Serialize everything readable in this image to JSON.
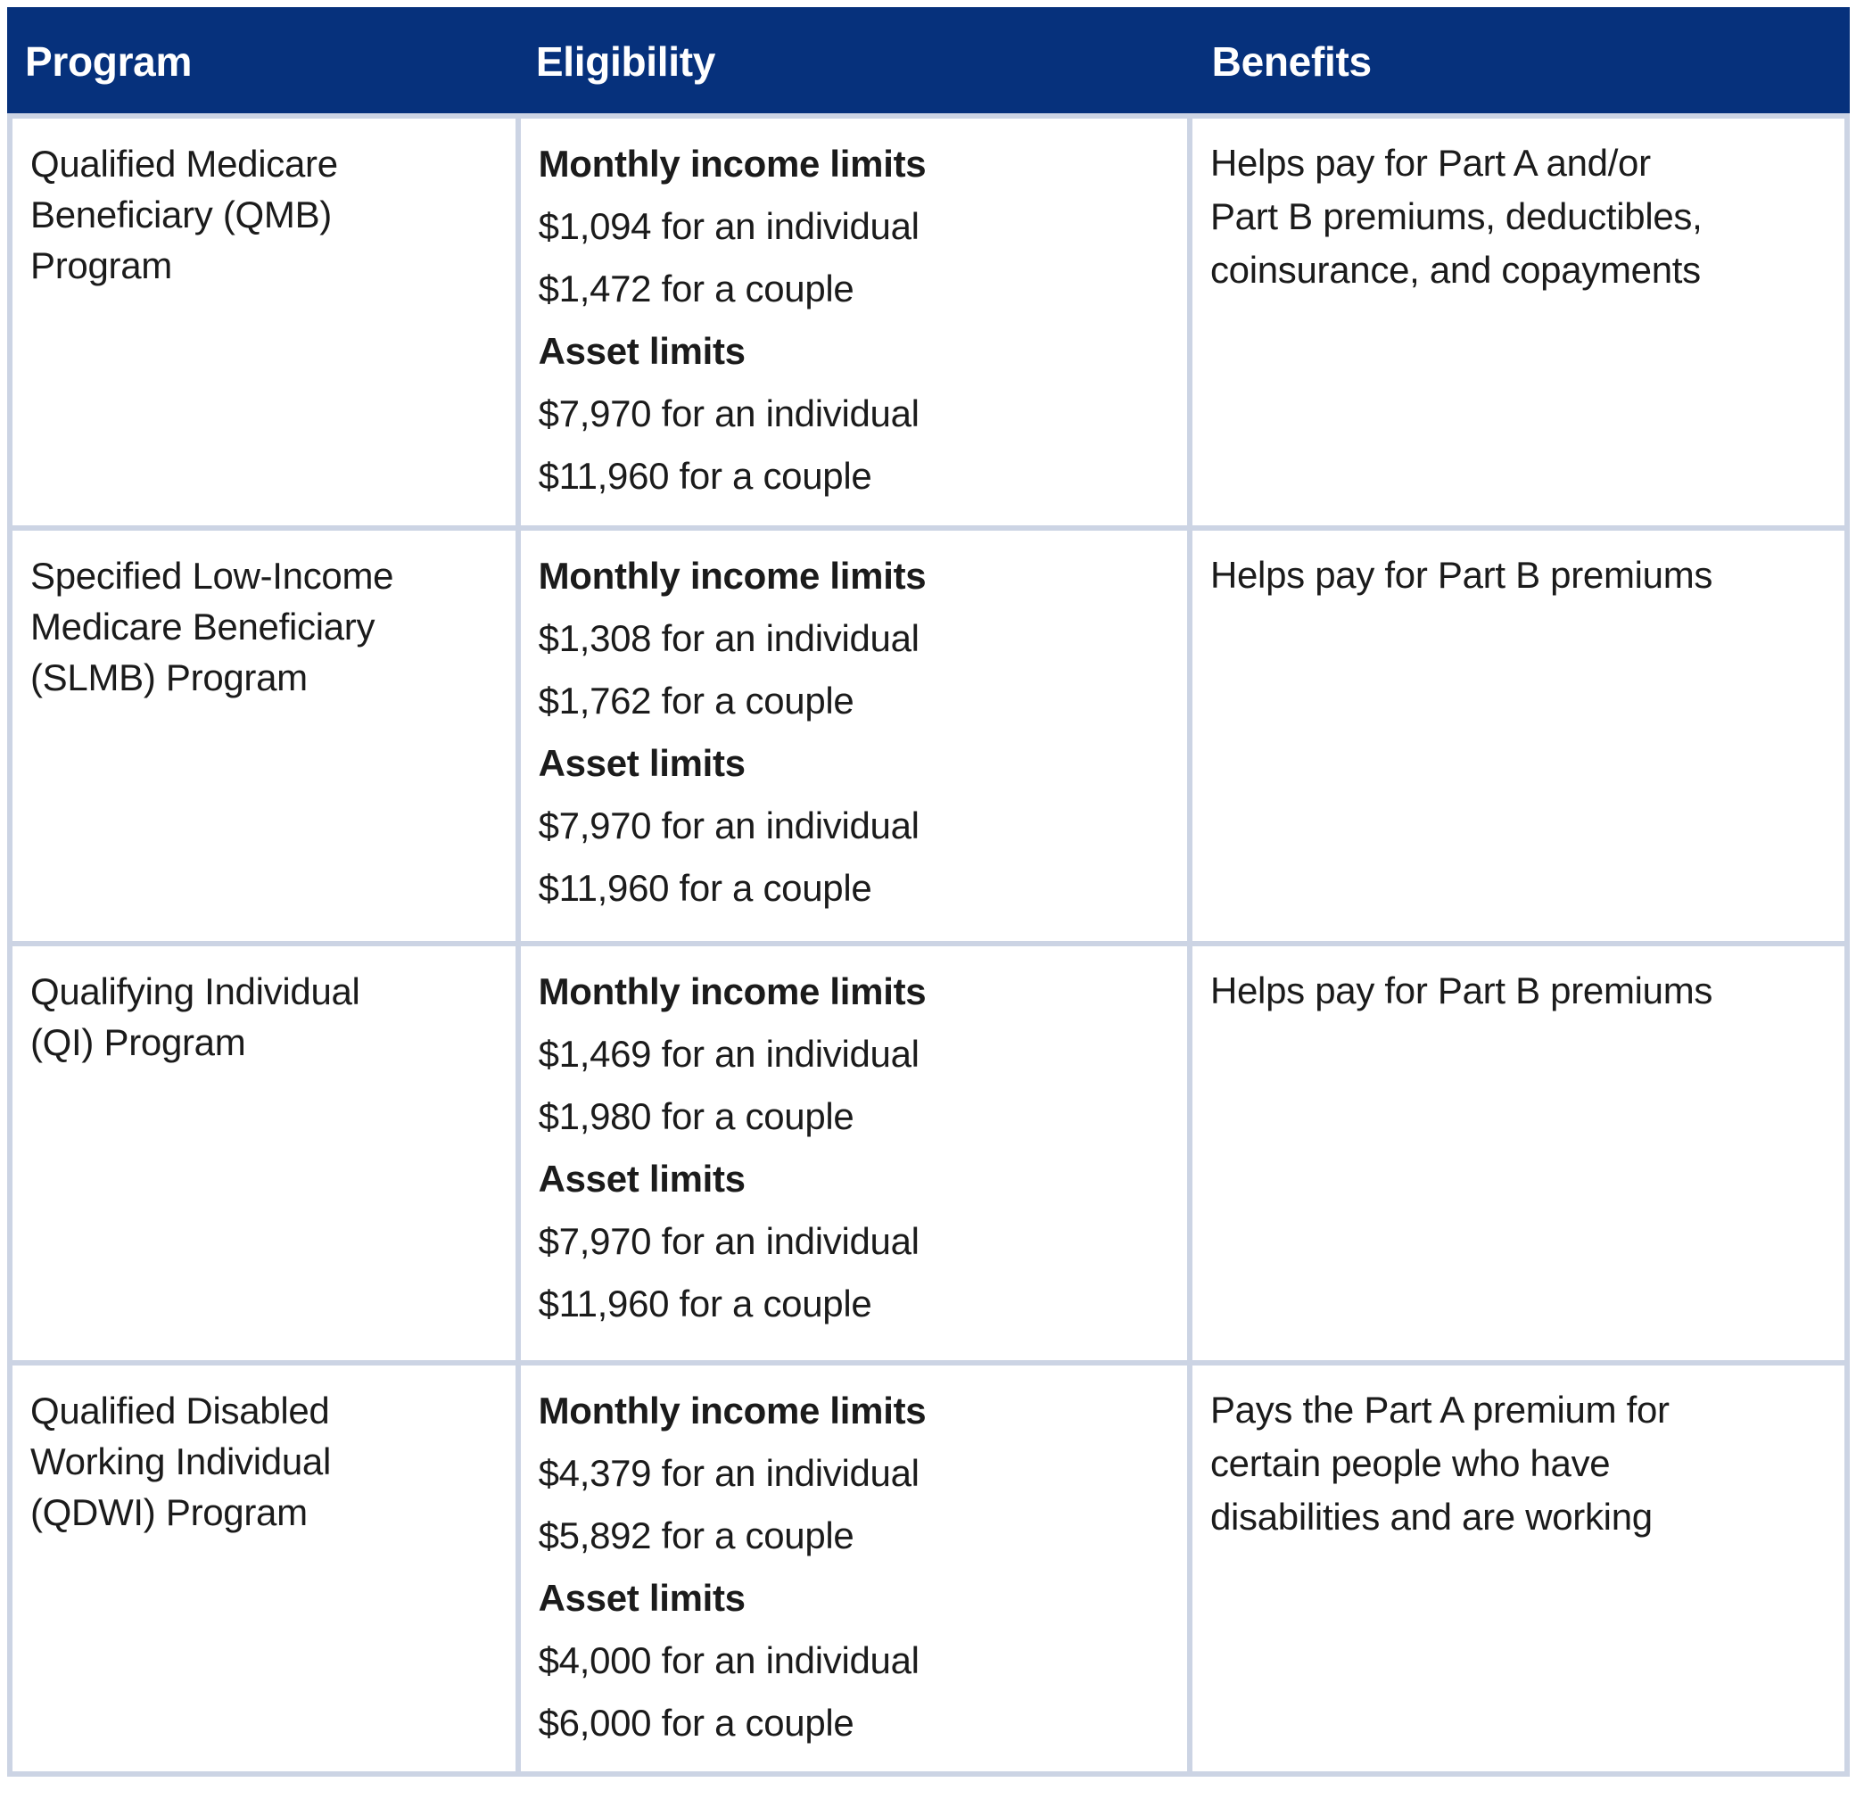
{
  "colors": {
    "header_bg": "#06317c",
    "border": "#ccd4e4",
    "text": "#1b1b1b",
    "header_text": "#ffffff"
  },
  "table": {
    "columns": [
      {
        "label": "Program"
      },
      {
        "label": "Eligibility"
      },
      {
        "label": "Benefits"
      }
    ],
    "rows": [
      {
        "program_lines": [
          "Qualified Medicare",
          "Beneficiary (QMB)",
          "Program"
        ],
        "eligibility": {
          "income_label": "Monthly income limits",
          "income_lines": [
            "$1,094 for an individual",
            "$1,472 for a couple"
          ],
          "asset_label": "Asset limits",
          "asset_lines": [
            "$7,970 for an individual",
            "$11,960 for a couple"
          ]
        },
        "benefit_lines": [
          "Helps pay for Part A and/or",
          "Part B premiums, deductibles,",
          "coinsurance, and copayments"
        ]
      },
      {
        "program_lines": [
          "Specified Low-Income",
          "Medicare Beneficiary",
          "(SLMB) Program"
        ],
        "eligibility": {
          "income_label": "Monthly income limits",
          "income_lines": [
            "$1,308 for an individual",
            "$1,762 for a couple"
          ],
          "asset_label": "Asset limits",
          "asset_lines": [
            "$7,970 for an individual",
            "$11,960 for a couple"
          ]
        },
        "benefit_lines": [
          "Helps pay for Part B premiums"
        ]
      },
      {
        "program_lines": [
          "Qualifying Individual",
          "(QI) Program"
        ],
        "eligibility": {
          "income_label": "Monthly income limits",
          "income_lines": [
            "$1,469 for an individual",
            "$1,980 for a couple"
          ],
          "asset_label": "Asset limits",
          "asset_lines": [
            "$7,970 for an individual",
            "$11,960 for a couple"
          ]
        },
        "benefit_lines": [
          "Helps pay for Part B premiums"
        ]
      },
      {
        "program_lines": [
          "Qualified Disabled",
          "Working Individual",
          "(QDWI) Program"
        ],
        "eligibility": {
          "income_label": "Monthly income limits",
          "income_lines": [
            "$4,379 for an individual",
            "$5,892 for a couple"
          ],
          "asset_label": "Asset limits",
          "asset_lines": [
            "$4,000 for an individual",
            "$6,000 for a couple"
          ]
        },
        "benefit_lines": [
          "Pays the Part A premium for",
          "certain people who have",
          "disabilities and are working"
        ]
      }
    ]
  }
}
